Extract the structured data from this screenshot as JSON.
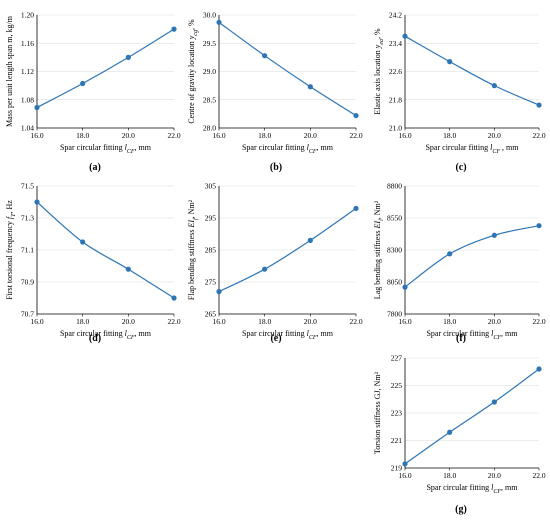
{
  "chart_data": [
    {
      "id": "a",
      "type": "line",
      "label": "(a)",
      "xlabel": "Spar circular fitting  l_CF, mm",
      "ylabel": "Mass per unit length span  m, kg/m",
      "x": [
        16,
        18,
        20,
        22
      ],
      "xlim": [
        16,
        22
      ],
      "xticks": [
        "16.0",
        "18.0",
        "20.0",
        "22.0"
      ],
      "y": [
        1.069,
        1.103,
        1.14,
        1.18
      ],
      "ylim": [
        1.04,
        1.2
      ],
      "yticks": [
        "1.04",
        "1.08",
        "1.12",
        "1.16",
        "1.20"
      ]
    },
    {
      "id": "b",
      "type": "line",
      "label": "(b)",
      "xlabel": "Spar circular fitting  l_CF, mm",
      "ylabel": "Centre of gravity location  y_cg, %",
      "x": [
        16,
        18,
        20,
        22
      ],
      "xlim": [
        16,
        22
      ],
      "xticks": [
        "16.0",
        "18.0",
        "20.0",
        "22.0"
      ],
      "y": [
        29.87,
        29.28,
        28.73,
        28.22
      ],
      "ylim": [
        28.0,
        30.0
      ],
      "yticks": [
        "28.0",
        "28.5",
        "29.0",
        "29.5",
        "30.0"
      ]
    },
    {
      "id": "c",
      "type": "line",
      "label": "(c)",
      "xlabel": "Spar circular fitting  l_CF , mm",
      "ylabel": "Elastic axis location  y_ea, %",
      "x": [
        16,
        18,
        20,
        22
      ],
      "xlim": [
        16,
        22
      ],
      "xticks": [
        "16.0",
        "18.0",
        "20.0",
        "22.0"
      ],
      "y": [
        23.6,
        22.88,
        22.2,
        21.65
      ],
      "ylim": [
        21.0,
        24.2
      ],
      "yticks": [
        "21.0",
        "21.8",
        "22.6",
        "23.4",
        "24.2"
      ]
    },
    {
      "id": "d",
      "type": "line",
      "label": "(d)",
      "xlabel": "Spar circular fitting  l_CF, mm",
      "ylabel": "First torsional frequency  f_T, Hz",
      "x": [
        16,
        18,
        20,
        22
      ],
      "xlim": [
        16,
        22
      ],
      "xticks": [
        "16.0",
        "18.0",
        "20.0",
        "22.0"
      ],
      "y": [
        71.4,
        71.15,
        70.98,
        70.8
      ],
      "ylim": [
        70.7,
        71.5
      ],
      "yticks": [
        "70.7",
        "70.9",
        "71.1",
        "71.3",
        "71.5"
      ]
    },
    {
      "id": "e",
      "type": "line",
      "label": "(e)",
      "xlabel": "Spar circular fitting  l_CF, mm",
      "ylabel": "Flap bending stiffness  EI_f, Nm²",
      "x": [
        16,
        18,
        20,
        22
      ],
      "xlim": [
        16,
        22
      ],
      "xticks": [
        "16.0",
        "18.0",
        "20.0",
        "22.0"
      ],
      "y": [
        272.0,
        279.0,
        288.0,
        298.0
      ],
      "ylim": [
        265,
        305
      ],
      "yticks": [
        "265",
        "275",
        "285",
        "295",
        "305"
      ]
    },
    {
      "id": "f",
      "type": "line",
      "label": "(f)",
      "xlabel": "Spar circular fitting  l_CF, mm",
      "ylabel": "Lag bending stiffness  EI_l, Nm²",
      "x": [
        16,
        18,
        20,
        22
      ],
      "xlim": [
        16,
        22
      ],
      "xticks": [
        "16.0",
        "18.0",
        "20.0",
        "22.0"
      ],
      "y": [
        8010,
        8270,
        8415,
        8490
      ],
      "ylim": [
        7800,
        8800
      ],
      "yticks": [
        "7800",
        "8050",
        "8300",
        "8550",
        "8800"
      ]
    },
    {
      "id": "g",
      "type": "line",
      "label": "(g)",
      "xlabel": "Spar circular fitting  l_CF, mm",
      "ylabel": "Torsion stiffness  GJ, Nm²",
      "x": [
        16,
        18,
        20,
        22
      ],
      "xlim": [
        16,
        22
      ],
      "xticks": [
        "16.0",
        "18.0",
        "20.0",
        "22.0"
      ],
      "y": [
        219.3,
        221.6,
        223.8,
        226.2
      ],
      "ylim": [
        219,
        227
      ],
      "yticks": [
        "219",
        "221",
        "223",
        "225",
        "227"
      ]
    }
  ],
  "colors": {
    "series": "#2e75b6",
    "axis": "#000000",
    "grid": "#d9d9d9"
  }
}
